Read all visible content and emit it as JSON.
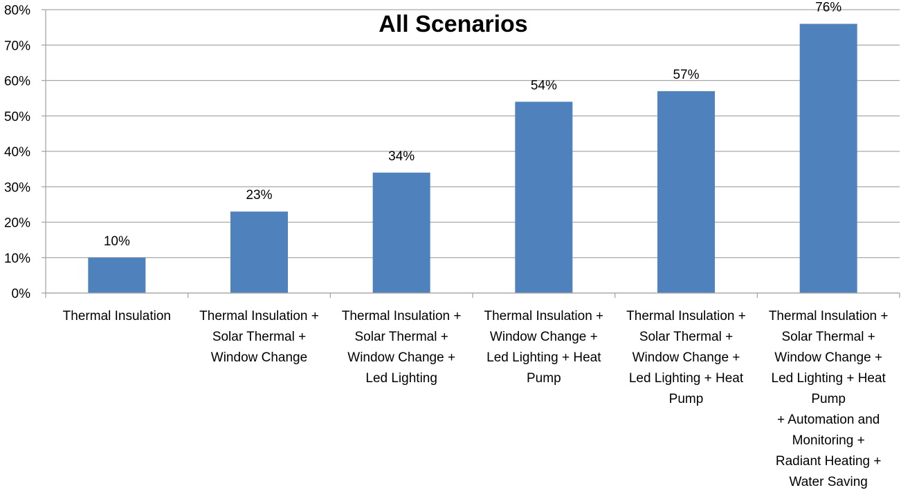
{
  "chart_data": {
    "type": "bar",
    "title": "All Scenarios",
    "xlabel": "",
    "ylabel": "",
    "ylim": [
      0,
      80
    ],
    "yticks": [
      "0%",
      "10%",
      "20%",
      "30%",
      "40%",
      "50%",
      "60%",
      "70%",
      "80%"
    ],
    "grid": true,
    "legend": "none",
    "bar_color": "#4f81bd",
    "categories": [
      "Thermal Insulation",
      "Thermal Insulation + Solar Thermal + Window Change",
      "Thermal Insulation + Solar Thermal + Window Change + Led Lighting",
      "Thermal Insulation + Window Change + Led Lighting + Heat Pump",
      "Thermal Insulation + Solar Thermal + Window Change + Led Lighting + Heat Pump",
      "Thermal Insulation + Solar Thermal + Window Change + Led Lighting + Heat Pump + Automation and Monitoring + Radiant Heating + Water Saving"
    ],
    "category_lines": [
      [
        "Thermal Insulation"
      ],
      [
        "Thermal Insulation +",
        "Solar Thermal +",
        "Window Change"
      ],
      [
        "Thermal Insulation +",
        "Solar Thermal +",
        "Window Change +",
        "Led Lighting"
      ],
      [
        "Thermal Insulation +",
        "Window Change +",
        "Led Lighting + Heat",
        "Pump"
      ],
      [
        "Thermal Insulation +",
        "Solar Thermal +",
        "Window Change +",
        "Led Lighting + Heat",
        "Pump"
      ],
      [
        "Thermal Insulation +",
        "Solar Thermal +",
        "Window Change +",
        "Led Lighting + Heat",
        "Pump",
        "+ Automation and",
        "Monitoring +",
        "Radiant Heating +",
        "Water Saving"
      ]
    ],
    "values": [
      10,
      23,
      34,
      54,
      57,
      76
    ],
    "data_labels": [
      "10%",
      "23%",
      "34%",
      "54%",
      "57%",
      "76%"
    ]
  }
}
